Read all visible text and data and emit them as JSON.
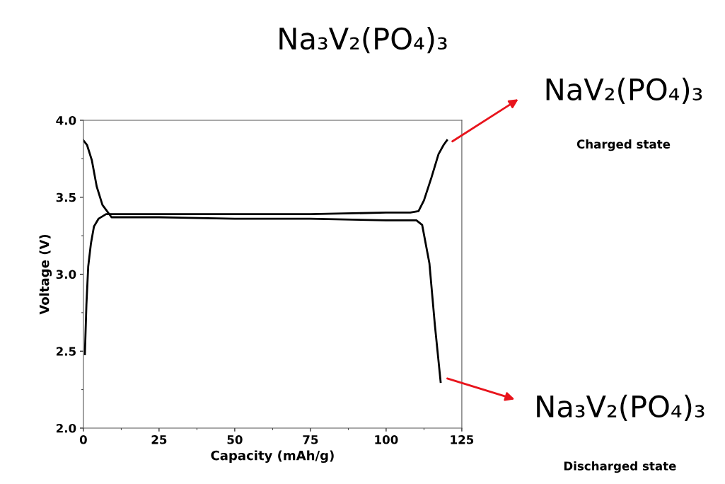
{
  "chart_data": {
    "type": "line",
    "title": "Na₃V₂(PO₄)₃",
    "xlabel": "Capacity (mAh/g)",
    "ylabel": "Voltage (V)",
    "xlim": [
      0,
      125
    ],
    "xticks": [
      0,
      25,
      50,
      75,
      100,
      125
    ],
    "ylim": [
      2.0,
      4.0
    ],
    "yticks": [
      {
        "value": 2,
        "label": "2.0"
      },
      {
        "value": 2.5,
        "label": "2.5"
      },
      {
        "value": 3,
        "label": "3.0"
      },
      {
        "value": 3.5,
        "label": "3.5"
      },
      {
        "value": 4,
        "label": "4.0"
      }
    ],
    "grid": false,
    "legend": false,
    "marker": "none",
    "line_style": "solid",
    "series": [
      {
        "color": "#000000",
        "x": [
          0.5,
          1.0,
          1.6,
          2.5,
          3.5,
          5.0,
          7.5,
          10,
          25,
          50,
          75,
          100,
          108,
          110.7,
          112.5,
          115,
          117.3,
          119,
          120.1
        ],
        "values": [
          2.48,
          2.8,
          3.05,
          3.2,
          3.31,
          3.36,
          3.39,
          3.39,
          3.39,
          3.39,
          3.39,
          3.4,
          3.4,
          3.41,
          3.48,
          3.63,
          3.78,
          3.84,
          3.87
        ]
      },
      {
        "color": "#000000",
        "x": [
          0,
          1.2,
          2.8,
          4.4,
          6.3,
          9.3,
          25,
          50,
          75,
          100,
          110,
          111.9,
          114.3,
          116.1,
          118
        ],
        "values": [
          3.87,
          3.84,
          3.74,
          3.57,
          3.45,
          3.37,
          3.37,
          3.36,
          3.36,
          3.35,
          3.35,
          3.32,
          3.07,
          2.67,
          2.3
        ]
      }
    ],
    "annotations": [
      "NaV₂(PO₄)₃",
      "Charged state",
      "Na₃V₂(PO₄)₃",
      "Discharged state"
    ]
  }
}
